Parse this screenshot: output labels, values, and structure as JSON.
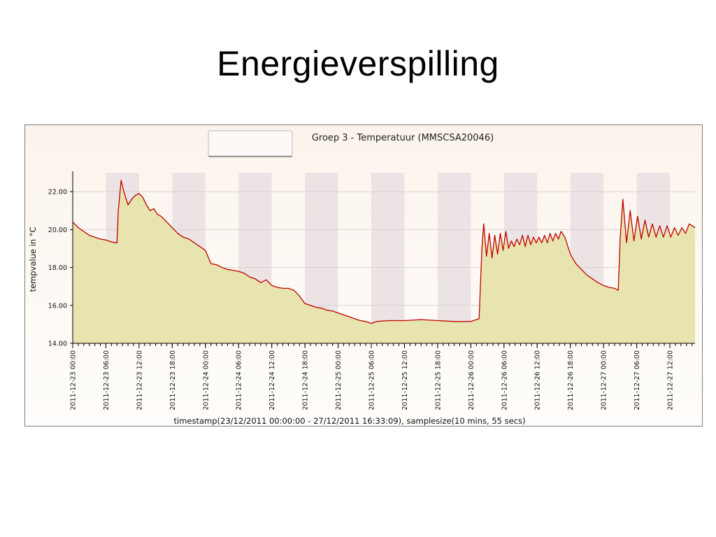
{
  "slide": {
    "title": "Energieverspilling"
  },
  "colors": {
    "background_top": "#fbf4ec",
    "background_bottom": "#fffdfb",
    "night_band": "#ece4e4",
    "area_fill": "#e8e4b0",
    "line": "#c00000",
    "grid": "#d8d4d4",
    "axis": "#000000"
  },
  "chart_data": {
    "type": "area",
    "title": "Groep 3 - Temperatuur (MMSCSA20046)",
    "xlabel": "timestamp(23/12/2011 00:00:00 - 27/12/2011 16:33:09), samplesize(10 mins, 55 secs)",
    "ylabel": "tempvalue in °C",
    "ylim": [
      14,
      23
    ],
    "xlim": [
      "2011-12-23 00:00",
      "2011-12-27 16:33"
    ],
    "yticks": [
      "14.00",
      "16.00",
      "18.00",
      "20.00",
      "22.00"
    ],
    "xticks": [
      "2011-12-23 00:00",
      "2011-12-23 06:00",
      "2011-12-23 12:00",
      "2011-12-23 18:00",
      "2011-12-24 00:00",
      "2011-12-24 06:00",
      "2011-12-24 12:00",
      "2011-12-24 18:00",
      "2011-12-25 00:00",
      "2011-12-25 06:00",
      "2011-12-25 12:00",
      "2011-12-25 18:00",
      "2011-12-26 00:00",
      "2011-12-26 06:00",
      "2011-12-26 12:00",
      "2011-12-26 18:00",
      "2011-12-27 00:00",
      "2011-12-27 06:00",
      "2011-12-27 12:00"
    ],
    "grid": true,
    "legend": "top-left",
    "night_bands": [
      [
        "2011-12-23 06:00",
        "2011-12-23 12:00"
      ],
      [
        "2011-12-23 18:00",
        "2011-12-24 00:00"
      ],
      [
        "2011-12-24 06:00",
        "2011-12-24 12:00"
      ],
      [
        "2011-12-24 18:00",
        "2011-12-25 00:00"
      ],
      [
        "2011-12-25 06:00",
        "2011-12-25 12:00"
      ],
      [
        "2011-12-25 18:00",
        "2011-12-26 00:00"
      ],
      [
        "2011-12-26 06:00",
        "2011-12-26 12:00"
      ],
      [
        "2011-12-26 18:00",
        "2011-12-27 00:00"
      ],
      [
        "2011-12-27 06:00",
        "2011-12-27 12:00"
      ]
    ],
    "series": [
      {
        "values": [
          [
            "2011-12-23 00:00",
            20.4
          ],
          [
            "2011-12-23 01:00",
            20.1
          ],
          [
            "2011-12-23 02:00",
            19.9
          ],
          [
            "2011-12-23 03:00",
            19.7
          ],
          [
            "2011-12-23 04:00",
            19.6
          ],
          [
            "2011-12-23 05:00",
            19.5
          ],
          [
            "2011-12-23 06:00",
            19.45
          ],
          [
            "2011-12-23 07:00",
            19.35
          ],
          [
            "2011-12-23 08:00",
            19.3
          ],
          [
            "2011-12-23 08:15",
            21.0
          ],
          [
            "2011-12-23 08:45",
            22.6
          ],
          [
            "2011-12-23 09:15",
            22.0
          ],
          [
            "2011-12-23 10:00",
            21.3
          ],
          [
            "2011-12-23 10:40",
            21.6
          ],
          [
            "2011-12-23 11:20",
            21.8
          ],
          [
            "2011-12-23 12:00",
            21.9
          ],
          [
            "2011-12-23 12:40",
            21.7
          ],
          [
            "2011-12-23 13:20",
            21.3
          ],
          [
            "2011-12-23 14:00",
            21.0
          ],
          [
            "2011-12-23 14:40",
            21.1
          ],
          [
            "2011-12-23 15:20",
            20.8
          ],
          [
            "2011-12-23 16:00",
            20.7
          ],
          [
            "2011-12-23 16:40",
            20.5
          ],
          [
            "2011-12-23 17:20",
            20.3
          ],
          [
            "2011-12-23 18:00",
            20.1
          ],
          [
            "2011-12-23 19:00",
            19.8
          ],
          [
            "2011-12-23 20:00",
            19.6
          ],
          [
            "2011-12-23 21:00",
            19.5
          ],
          [
            "2011-12-23 22:00",
            19.3
          ],
          [
            "2011-12-23 23:00",
            19.1
          ],
          [
            "2011-12-24 00:00",
            18.9
          ],
          [
            "2011-12-24 01:00",
            18.2
          ],
          [
            "2011-12-24 02:00",
            18.15
          ],
          [
            "2011-12-24 03:00",
            18.0
          ],
          [
            "2011-12-24 04:00",
            17.9
          ],
          [
            "2011-12-24 05:00",
            17.85
          ],
          [
            "2011-12-24 06:00",
            17.8
          ],
          [
            "2011-12-24 07:00",
            17.7
          ],
          [
            "2011-12-24 08:00",
            17.5
          ],
          [
            "2011-12-24 09:00",
            17.4
          ],
          [
            "2011-12-24 10:00",
            17.2
          ],
          [
            "2011-12-24 11:00",
            17.35
          ],
          [
            "2011-12-24 12:00",
            17.05
          ],
          [
            "2011-12-24 13:00",
            16.95
          ],
          [
            "2011-12-24 14:00",
            16.9
          ],
          [
            "2011-12-24 15:00",
            16.9
          ],
          [
            "2011-12-24 16:00",
            16.8
          ],
          [
            "2011-12-24 17:00",
            16.5
          ],
          [
            "2011-12-24 18:00",
            16.1
          ],
          [
            "2011-12-24 19:00",
            16.0
          ],
          [
            "2011-12-24 20:00",
            15.9
          ],
          [
            "2011-12-24 21:00",
            15.85
          ],
          [
            "2011-12-24 22:00",
            15.75
          ],
          [
            "2011-12-24 23:00",
            15.7
          ],
          [
            "2011-12-25 00:00",
            15.6
          ],
          [
            "2011-12-25 01:00",
            15.5
          ],
          [
            "2011-12-25 02:00",
            15.4
          ],
          [
            "2011-12-25 03:00",
            15.3
          ],
          [
            "2011-12-25 04:00",
            15.2
          ],
          [
            "2011-12-25 05:00",
            15.15
          ],
          [
            "2011-12-25 06:00",
            15.05
          ],
          [
            "2011-12-25 07:00",
            15.15
          ],
          [
            "2011-12-25 09:00",
            15.2
          ],
          [
            "2011-12-25 12:00",
            15.2
          ],
          [
            "2011-12-25 15:00",
            15.25
          ],
          [
            "2011-12-25 18:00",
            15.2
          ],
          [
            "2011-12-25 21:00",
            15.15
          ],
          [
            "2011-12-26 00:00",
            15.15
          ],
          [
            "2011-12-26 01:30",
            15.3
          ],
          [
            "2011-12-26 02:00",
            19.0
          ],
          [
            "2011-12-26 02:20",
            20.3
          ],
          [
            "2011-12-26 02:50",
            18.6
          ],
          [
            "2011-12-26 03:20",
            19.8
          ],
          [
            "2011-12-26 03:50",
            18.5
          ],
          [
            "2011-12-26 04:20",
            19.7
          ],
          [
            "2011-12-26 04:50",
            18.7
          ],
          [
            "2011-12-26 05:20",
            19.8
          ],
          [
            "2011-12-26 05:50",
            18.9
          ],
          [
            "2011-12-26 06:20",
            19.9
          ],
          [
            "2011-12-26 06:50",
            19.0
          ],
          [
            "2011-12-26 07:20",
            19.4
          ],
          [
            "2011-12-26 07:50",
            19.1
          ],
          [
            "2011-12-26 08:20",
            19.5
          ],
          [
            "2011-12-26 08:50",
            19.2
          ],
          [
            "2011-12-26 09:20",
            19.7
          ],
          [
            "2011-12-26 09:50",
            19.1
          ],
          [
            "2011-12-26 10:20",
            19.7
          ],
          [
            "2011-12-26 10:50",
            19.2
          ],
          [
            "2011-12-26 11:20",
            19.6
          ],
          [
            "2011-12-26 11:50",
            19.3
          ],
          [
            "2011-12-26 12:20",
            19.6
          ],
          [
            "2011-12-26 12:50",
            19.3
          ],
          [
            "2011-12-26 13:20",
            19.7
          ],
          [
            "2011-12-26 13:50",
            19.3
          ],
          [
            "2011-12-26 14:20",
            19.8
          ],
          [
            "2011-12-26 14:50",
            19.4
          ],
          [
            "2011-12-26 15:20",
            19.8
          ],
          [
            "2011-12-26 15:50",
            19.5
          ],
          [
            "2011-12-26 16:20",
            19.9
          ],
          [
            "2011-12-26 17:00",
            19.6
          ],
          [
            "2011-12-26 18:00",
            18.7
          ],
          [
            "2011-12-26 19:00",
            18.2
          ],
          [
            "2011-12-26 20:00",
            17.9
          ],
          [
            "2011-12-26 21:00",
            17.6
          ],
          [
            "2011-12-26 22:00",
            17.4
          ],
          [
            "2011-12-26 23:00",
            17.2
          ],
          [
            "2011-12-27 00:00",
            17.05
          ],
          [
            "2011-12-27 01:00",
            16.95
          ],
          [
            "2011-12-27 02:00",
            16.9
          ],
          [
            "2011-12-27 02:40",
            16.8
          ],
          [
            "2011-12-27 03:00",
            19.5
          ],
          [
            "2011-12-27 03:30",
            21.6
          ],
          [
            "2011-12-27 04:10",
            19.3
          ],
          [
            "2011-12-27 04:50",
            21.0
          ],
          [
            "2011-12-27 05:30",
            19.4
          ],
          [
            "2011-12-27 06:10",
            20.7
          ],
          [
            "2011-12-27 06:50",
            19.5
          ],
          [
            "2011-12-27 07:30",
            20.5
          ],
          [
            "2011-12-27 08:10",
            19.6
          ],
          [
            "2011-12-27 08:50",
            20.3
          ],
          [
            "2011-12-27 09:30",
            19.6
          ],
          [
            "2011-12-27 10:10",
            20.2
          ],
          [
            "2011-12-27 10:50",
            19.6
          ],
          [
            "2011-12-27 11:30",
            20.2
          ],
          [
            "2011-12-27 12:10",
            19.6
          ],
          [
            "2011-12-27 12:50",
            20.1
          ],
          [
            "2011-12-27 13:30",
            19.7
          ],
          [
            "2011-12-27 14:10",
            20.1
          ],
          [
            "2011-12-27 14:50",
            19.8
          ],
          [
            "2011-12-27 15:30",
            20.3
          ],
          [
            "2011-12-27 16:33",
            20.1
          ]
        ]
      }
    ]
  }
}
